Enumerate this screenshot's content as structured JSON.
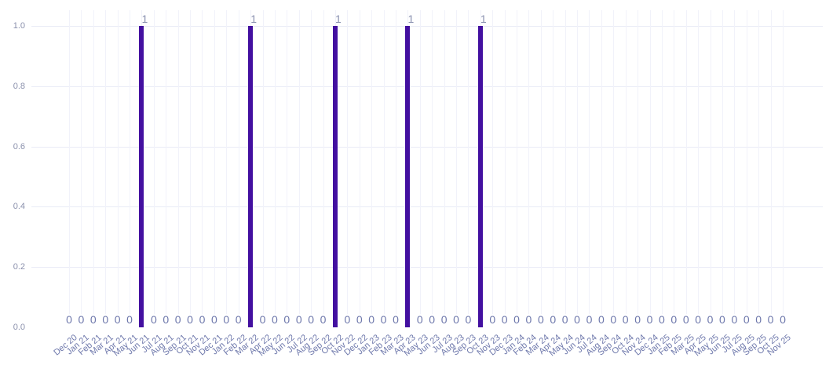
{
  "chart_data": {
    "type": "bar",
    "title": "",
    "xlabel": "",
    "ylabel": "",
    "categories": [
      "Dec 20",
      "Jan 21",
      "Feb 21",
      "Mar 21",
      "Apr 21",
      "May 21",
      "Jun 21",
      "Jul 21",
      "Aug 21",
      "Sep 21",
      "Oct 21",
      "Nov 21",
      "Dec 21",
      "Jan 22",
      "Feb 22",
      "Mar 22",
      "Apr 22",
      "May 22",
      "Jun 22",
      "Jul 22",
      "Aug 22",
      "Sep 22",
      "Oct 22",
      "Nov 22",
      "Dec 22",
      "Jan 23",
      "Feb 23",
      "Mar 23",
      "Apr 23",
      "May 23",
      "Jun 23",
      "Jul 23",
      "Aug 23",
      "Sep 23",
      "Oct 23",
      "Nov 23",
      "Dec 23",
      "Jan 24",
      "Feb 24",
      "Mar 24",
      "Apr 24",
      "May 24",
      "Jun 24",
      "Jul 24",
      "Aug 24",
      "Sep 24",
      "Oct 24",
      "Nov 24",
      "Dec 24",
      "Jan 25",
      "Feb 25",
      "Mar 25",
      "Apr 25",
      "May 25",
      "Jun 25",
      "Jul 25",
      "Aug 25",
      "Sep 25",
      "Oct 25",
      "Nov 25"
    ],
    "values": [
      0,
      0,
      0,
      0,
      0,
      0,
      1,
      0,
      0,
      0,
      0,
      0,
      0,
      0,
      0,
      1,
      0,
      0,
      0,
      0,
      0,
      0,
      1,
      0,
      0,
      0,
      0,
      0,
      1,
      0,
      0,
      0,
      0,
      0,
      1,
      0,
      0,
      0,
      0,
      0,
      0,
      0,
      0,
      0,
      0,
      0,
      0,
      0,
      0,
      0,
      0,
      0,
      0,
      0,
      0,
      0,
      0,
      0,
      0,
      0
    ],
    "months_with_value_1": [
      "Jun 21",
      "Mar 22",
      "Oct 22",
      "Apr 23",
      "Oct 23"
    ],
    "ylim": [
      0,
      1
    ],
    "yticks": [
      0,
      0.2,
      0.4,
      0.6,
      0.8,
      1
    ],
    "ytick_labels": [
      "0.0",
      "0.2",
      "0.4",
      "0.6",
      "0.8",
      "1.0"
    ],
    "grid": true,
    "legend_position": "none",
    "data_labels_shown": true,
    "colors": {
      "bar": "#4310a0",
      "value_label": "#8a91b0",
      "zero_label": "#6d77ab",
      "xtick_label": "#6d77ab",
      "ytick_label": "#8a90ac",
      "h_gridline": "#e9ebf6",
      "v_gridline": "#f1f2fa",
      "background": "#ffffff"
    }
  }
}
